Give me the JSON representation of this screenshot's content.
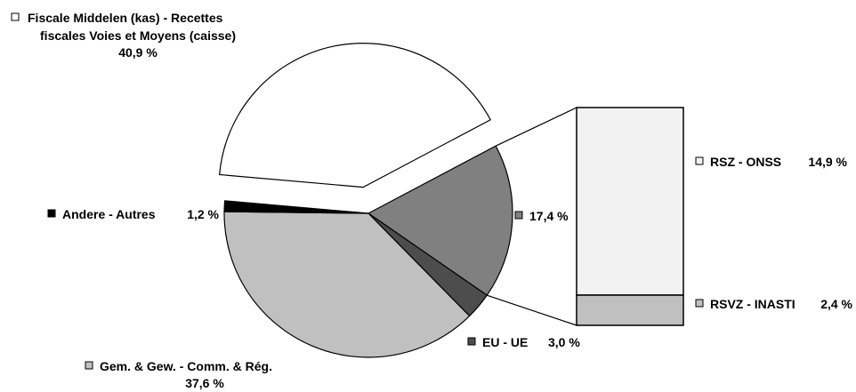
{
  "chart_data": {
    "type": "pie",
    "variant": "pie-of-bar",
    "slices": [
      {
        "key": "fiscal",
        "label_lines": [
          "Fiscale Middelen (kas) - Recettes",
          "fiscales Voies et Moyens (caisse)"
        ],
        "pct_text": "40,9 %",
        "value": 40.9,
        "color": "#ffffff",
        "exploded": true
      },
      {
        "key": "social",
        "label": "",
        "pct_text": "17,4 %",
        "value": 17.4,
        "color": "#808080",
        "exploded": false
      },
      {
        "key": "eu",
        "label": "EU - UE",
        "pct_text": "3,0 %",
        "value": 3.0,
        "color": "#4d4d4d",
        "exploded": false
      },
      {
        "key": "gem",
        "label": "Gem. & Gew. - Comm. & Rég.",
        "pct_text": "37,6 %",
        "value": 37.6,
        "color": "#c0c0c0",
        "exploded": false
      },
      {
        "key": "andere",
        "label": "Andere - Autres",
        "pct_text": "1,2 %",
        "value": 1.2,
        "color": "#000000",
        "exploded": false
      }
    ],
    "breakdown_of": "social",
    "bar_segments": [
      {
        "key": "rsz",
        "label": "RSZ - ONSS",
        "pct_text": "14,9 %",
        "value": 14.9,
        "color": "#f2f2f2"
      },
      {
        "key": "rsvz",
        "label": "RSVZ - INASTI",
        "pct_text": "2,4 %",
        "value": 2.4,
        "color": "#c0c0c0"
      }
    ]
  }
}
